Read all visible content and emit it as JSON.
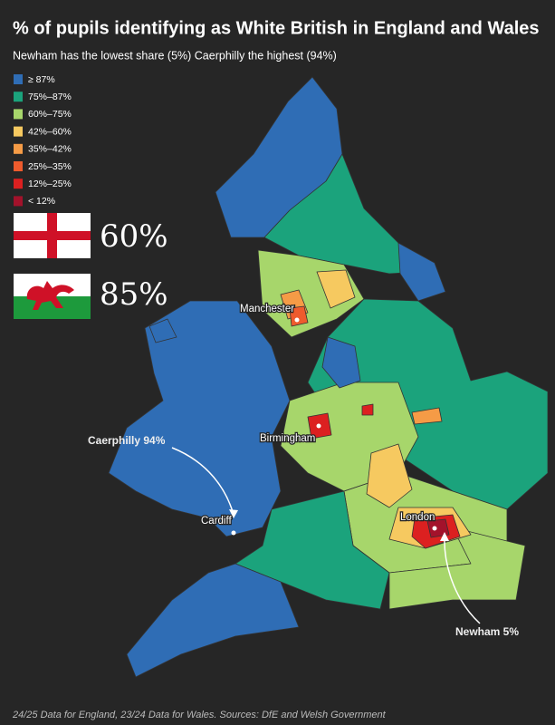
{
  "title": "% of pupils identifying as White British in England and Wales",
  "subtitle": "Newham has the lowest share (5%) Caerphilly the highest (94%)",
  "legend": [
    {
      "label": "≥ 87%",
      "color": "#2f6db5"
    },
    {
      "label": "75%–87%",
      "color": "#1ba37c"
    },
    {
      "label": "60%–75%",
      "color": "#a7d66b"
    },
    {
      "label": "42%–60%",
      "color": "#f6c960"
    },
    {
      "label": "35%–42%",
      "color": "#f59b46"
    },
    {
      "label": "25%–35%",
      "color": "#ee5b2d"
    },
    {
      "label": "12%–25%",
      "color": "#dc2020"
    },
    {
      "label": "< 12%",
      "color": "#a3122b"
    }
  ],
  "nations": [
    {
      "share": "60%"
    },
    {
      "share": "85%"
    }
  ],
  "places": [
    "Manchester",
    "Birmingham",
    "Cardiff",
    "London"
  ],
  "annotations": [
    "Caerphilly 94%",
    "Newham 5%"
  ],
  "footer": "24/25 Data for England, 23/24 Data for Wales. Sources: DfE and Welsh Government"
}
